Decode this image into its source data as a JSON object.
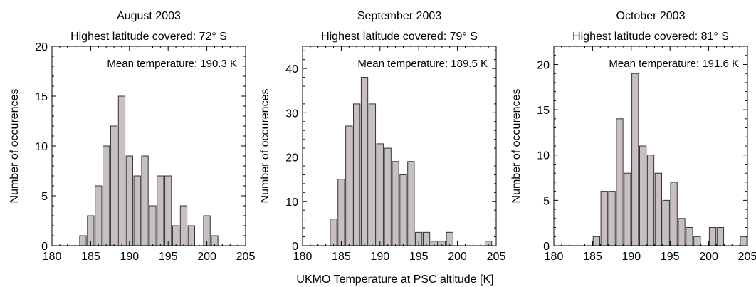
{
  "figure": {
    "shared_xlabel": "UKMO Temperature at PSC altitude [K]"
  },
  "chart_data": [
    {
      "type": "bar",
      "title": "August 2003",
      "subtitle": "Highest latitude covered: 72° S",
      "annotation": "Mean temperature: 190.3 K",
      "ylabel": "Number of occurences",
      "xlim": [
        180,
        205
      ],
      "ylim": [
        0,
        20
      ],
      "xticks": [
        180,
        185,
        190,
        195,
        200,
        205
      ],
      "yticks": [
        0,
        5,
        10,
        15,
        20
      ],
      "bin_width": 1,
      "x": [
        184,
        185,
        186,
        187,
        188,
        189,
        190,
        191,
        192,
        193,
        194,
        195,
        196,
        197,
        198,
        199,
        200,
        201
      ],
      "values": [
        1,
        3,
        6,
        10,
        12,
        15,
        9,
        7,
        9,
        4,
        7,
        7,
        2,
        4,
        2,
        0,
        3,
        1
      ],
      "bar_color": "#c8c0c0"
    },
    {
      "type": "bar",
      "title": "September 2003",
      "subtitle": "Highest latitude covered: 79° S",
      "annotation": "Mean temperature: 189.5 K",
      "ylabel": "Number of occurences",
      "xlim": [
        180,
        205
      ],
      "ylim": [
        0,
        45
      ],
      "xticks": [
        180,
        185,
        190,
        195,
        200,
        205
      ],
      "yticks": [
        0,
        10,
        20,
        30,
        40
      ],
      "bin_width": 1,
      "x": [
        184,
        185,
        186,
        187,
        188,
        189,
        190,
        191,
        192,
        193,
        194,
        195,
        196,
        197,
        198,
        199,
        200,
        201,
        202,
        203,
        204
      ],
      "values": [
        6,
        15,
        27,
        32,
        38,
        32,
        23,
        22,
        19,
        16,
        19,
        3,
        3,
        1,
        1,
        3,
        0,
        0,
        0,
        0,
        1
      ],
      "bar_color": "#c8c0c0"
    },
    {
      "type": "bar",
      "title": "October 2003",
      "subtitle": "Highest latitude covered: 81° S",
      "annotation": "Mean temperature: 191.6 K",
      "ylabel": "Number of occurences",
      "xlim": [
        180,
        205
      ],
      "ylim": [
        0,
        22
      ],
      "xticks": [
        180,
        185,
        190,
        195,
        200,
        205
      ],
      "yticks": [
        0,
        5,
        10,
        15,
        20
      ],
      "bin_width": 1,
      "x": [
        185.5,
        186.5,
        187.5,
        188.5,
        189.5,
        190.5,
        191.5,
        192.5,
        193.5,
        194.5,
        195.5,
        196.5,
        197.5,
        198.5,
        199.5,
        200.5,
        201.5,
        202.5,
        203.5,
        204.5
      ],
      "values": [
        1,
        6,
        6,
        14,
        8,
        19,
        11,
        10,
        8,
        5,
        7,
        3,
        2,
        1,
        0,
        2,
        2,
        0,
        0,
        1
      ],
      "bar_color": "#c8c0c0"
    }
  ]
}
